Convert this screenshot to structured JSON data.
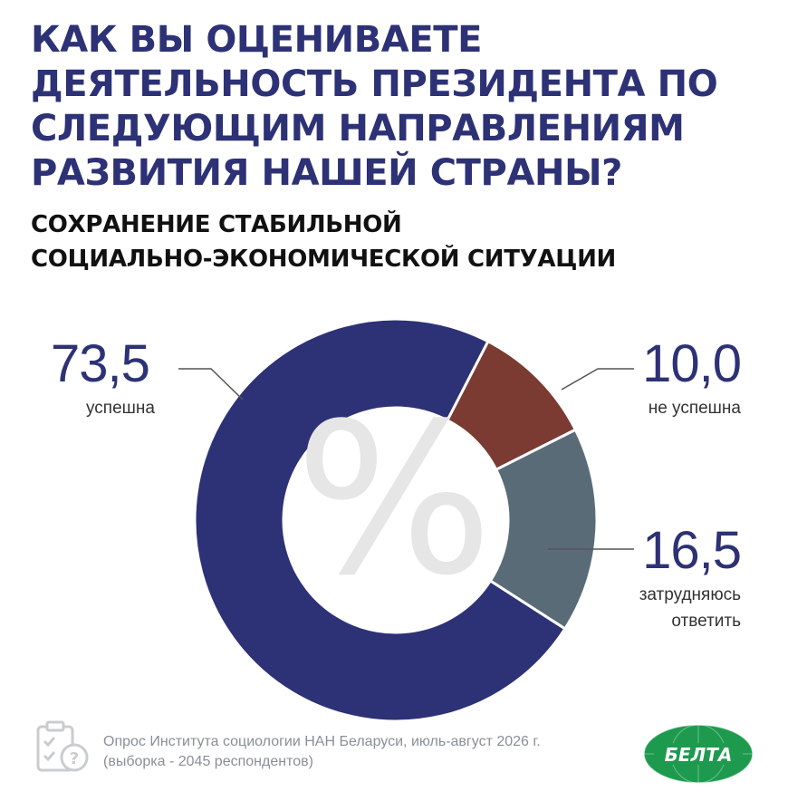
{
  "header": {
    "title": "КАК ВЫ ОЦЕНИВАЕТЕ ДЕЯТЕЛЬНОСТЬ ПРЕЗИДЕНТА ПО СЛЕДУЮЩИМ НАПРАВЛЕНИЯМ РАЗВИТИЯ НАШЕЙ СТРАНЫ?",
    "subtitle_line1": "СОХРАНЕНИЕ СТАБИЛЬНОЙ",
    "subtitle_line2": "СОЦИАЛЬНО-ЭКОНОМИЧЕСКОЙ СИТУАЦИИ"
  },
  "chart_data": {
    "type": "pie",
    "variant": "donut",
    "center_symbol": "%",
    "slices": [
      {
        "label": "успешна",
        "value": 73.5,
        "value_text": "73,5",
        "color": "#2d3175"
      },
      {
        "label": "не успешна",
        "value": 10.0,
        "value_text": "10,0",
        "color": "#7b3a32"
      },
      {
        "label": "затрудняюсь ответить",
        "value": 16.5,
        "value_text": "16,5",
        "color": "#5a6b78"
      }
    ]
  },
  "labels": {
    "s0_value": "73,5",
    "s0_label": "успешна",
    "s1_value": "10,0",
    "s1_label": "не успешна",
    "s2_value": "16,5",
    "s2_label_line1": "затрудняюсь",
    "s2_label_line2": "ответить"
  },
  "footer": {
    "source_line1": "Опрос Института социологии НАН Беларуси, июль-август 2026 г.",
    "source_line2": "(выборка - 2045 респондентов)",
    "logo_text": "БЕЛТА"
  },
  "colors": {
    "title": "#2d3175",
    "center_symbol": "#e6e6e6",
    "leader_line": "#555555",
    "footer": "#8a8f96",
    "logo_green": "#1e9a4e"
  }
}
